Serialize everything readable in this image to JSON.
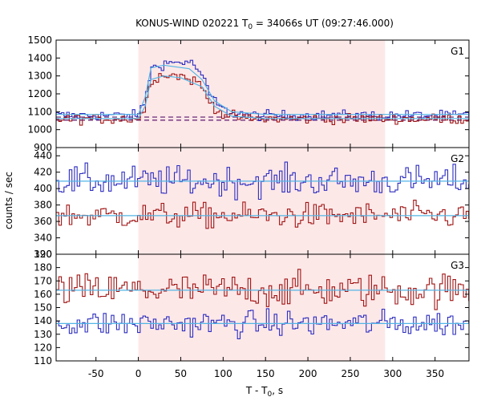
{
  "chart_data": {
    "type": "line",
    "title_main": "KONUS-WIND 020221 T",
    "title_sub": "0",
    "title_rest": " = 34066s UT (09:27:46.000)",
    "xlabel_main": "T - T",
    "xlabel_sub": "0",
    "xlabel_rest": ", s",
    "ylabel": "counts / sec",
    "xlim": [
      -97,
      390
    ],
    "xticks": [
      -50,
      0,
      50,
      100,
      150,
      200,
      250,
      300,
      350
    ],
    "shaded_interval": [
      0,
      291
    ],
    "colors": {
      "blue": "#2d2dbf",
      "red": "#a01414",
      "fit": "#52b6e6",
      "shade": "#fde8e8",
      "bgline": "#6b2a7a"
    },
    "panels": [
      {
        "label": "G1",
        "ylim": [
          900,
          1500
        ],
        "yticks": [
          900,
          1000,
          1100,
          1200,
          1300,
          1400,
          1500
        ],
        "series": [
          {
            "color": "blue",
            "baseline": 1080,
            "noise": 20,
            "pulse": [
              [
                0,
                0
              ],
              [
                8,
                80
              ],
              [
                15,
                260
              ],
              [
                30,
                290
              ],
              [
                60,
                300
              ],
              [
                72,
                250
              ],
              [
                85,
                110
              ],
              [
                100,
                30
              ],
              [
                130,
                0
              ]
            ]
          },
          {
            "color": "red",
            "baseline": 1060,
            "noise": 20,
            "pulse": [
              [
                0,
                0
              ],
              [
                8,
                60
              ],
              [
                15,
                220
              ],
              [
                30,
                250
              ],
              [
                50,
                240
              ],
              [
                72,
                200
              ],
              [
                85,
                90
              ],
              [
                100,
                25
              ],
              [
                130,
                0
              ]
            ]
          }
        ],
        "fits": [
          {
            "color": "fit",
            "points": [
              [
                -97,
                1085
              ],
              [
                0,
                1085
              ],
              [
                8,
                1180
              ],
              [
                15,
                1345
              ],
              [
                30,
                1360
              ],
              [
                60,
                1340
              ],
              [
                75,
                1280
              ],
              [
                90,
                1160
              ],
              [
                110,
                1100
              ],
              [
                150,
                1085
              ],
              [
                390,
                1085
              ]
            ]
          },
          {
            "color": "fit",
            "points": [
              [
                -97,
                1062
              ],
              [
                0,
                1062
              ],
              [
                8,
                1130
              ],
              [
                15,
                1280
              ],
              [
                30,
                1300
              ],
              [
                50,
                1290
              ],
              [
                75,
                1240
              ],
              [
                90,
                1130
              ],
              [
                110,
                1075
              ],
              [
                150,
                1062
              ],
              [
                390,
                1062
              ]
            ]
          }
        ],
        "bg_lines": [
          1070,
          1053
        ]
      },
      {
        "label": "G2",
        "ylim": [
          320,
          450
        ],
        "yticks": [
          320,
          340,
          360,
          380,
          400,
          420,
          440
        ],
        "series": [
          {
            "color": "blue",
            "baseline": 409,
            "noise": 13
          },
          {
            "color": "red",
            "baseline": 367,
            "noise": 11
          }
        ],
        "fits": [
          {
            "color": "fit",
            "points": [
              [
                -97,
                409
              ],
              [
                390,
                409
              ]
            ]
          },
          {
            "color": "fit",
            "points": [
              [
                -97,
                367
              ],
              [
                390,
                367
              ]
            ]
          }
        ]
      },
      {
        "label": "G3",
        "ylim": [
          110,
          190
        ],
        "yticks": [
          110,
          120,
          130,
          140,
          150,
          160,
          170,
          180,
          190
        ],
        "series": [
          {
            "color": "red",
            "baseline": 163,
            "noise": 9
          },
          {
            "color": "blue",
            "baseline": 138,
            "noise": 7
          }
        ],
        "fits": [
          {
            "color": "fit",
            "points": [
              [
                -97,
                163
              ],
              [
                390,
                163
              ]
            ]
          },
          {
            "color": "fit",
            "points": [
              [
                -97,
                138
              ],
              [
                390,
                138
              ]
            ]
          }
        ]
      }
    ]
  }
}
